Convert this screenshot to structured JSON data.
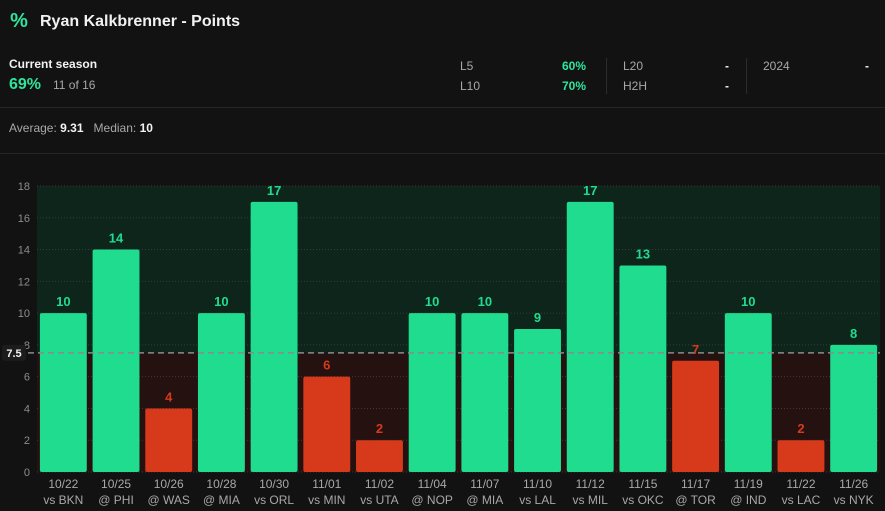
{
  "header": {
    "icon": "percent-icon",
    "title": "Ryan Kalkbrenner - Points"
  },
  "summary": {
    "current_label": "Current season",
    "current_pct": "69%",
    "current_frac": "11 of 16",
    "l5_label": "L5",
    "l5_val": "60%",
    "l10_label": "L10",
    "l10_val": "70%",
    "l20_label": "L20",
    "l20_val": "-",
    "h2h_label": "H2H",
    "h2h_val": "-",
    "y2024_label": "2024",
    "y2024_val": "-"
  },
  "averages": {
    "avg_label": "Average:",
    "avg_val": "9.31",
    "med_label": "Median:",
    "med_val": "10"
  },
  "colors": {
    "over": "#1fdc8f",
    "under": "#d63a1a",
    "line": "#8a8a8a"
  },
  "chart_data": {
    "type": "bar",
    "title": "",
    "xlabel": "",
    "ylabel": "",
    "ylim": [
      0,
      18
    ],
    "yticks": [
      0,
      2,
      4,
      6,
      8,
      10,
      12,
      14,
      16,
      18
    ],
    "threshold": 7.5,
    "threshold_label": "7.5",
    "grid": true,
    "categories": [
      [
        "10/22",
        "vs BKN"
      ],
      [
        "10/25",
        "@ PHI"
      ],
      [
        "10/26",
        "@ WAS"
      ],
      [
        "10/28",
        "@ MIA"
      ],
      [
        "10/30",
        "vs ORL"
      ],
      [
        "11/01",
        "vs MIN"
      ],
      [
        "11/02",
        "vs UTA"
      ],
      [
        "11/04",
        "@ NOP"
      ],
      [
        "11/07",
        "@ MIA"
      ],
      [
        "11/10",
        "vs LAL"
      ],
      [
        "11/12",
        "vs MIL"
      ],
      [
        "11/15",
        "vs OKC"
      ],
      [
        "11/17",
        "@ TOR"
      ],
      [
        "11/19",
        "@ IND"
      ],
      [
        "11/22",
        "vs LAC"
      ],
      [
        "11/26",
        "vs NYK"
      ]
    ],
    "values": [
      10,
      14,
      4,
      10,
      17,
      6,
      2,
      10,
      10,
      9,
      17,
      13,
      7,
      10,
      2,
      8
    ]
  }
}
